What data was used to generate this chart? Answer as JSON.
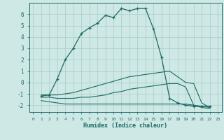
{
  "xlabel": "Humidex (Indice chaleur)",
  "background_color": "#cde8e5",
  "grid_color": "#aed0cc",
  "line_color": "#1a6b65",
  "xlim": [
    -0.5,
    23.5
  ],
  "ylim": [
    -2.6,
    7.0
  ],
  "xticks": [
    0,
    1,
    2,
    3,
    4,
    5,
    6,
    7,
    8,
    9,
    10,
    11,
    12,
    13,
    14,
    15,
    16,
    17,
    18,
    19,
    20,
    21,
    22,
    23
  ],
  "yticks": [
    -2,
    -1,
    0,
    1,
    2,
    3,
    4,
    5,
    6
  ],
  "series": [
    {
      "x": [
        1,
        2,
        3,
        4,
        5,
        6,
        7,
        8,
        9,
        10,
        11,
        12,
        13,
        14,
        15,
        16,
        17,
        18,
        19,
        20,
        21,
        22
      ],
      "y": [
        -1.2,
        -1.1,
        0.3,
        2.0,
        3.0,
        4.3,
        4.8,
        5.2,
        5.9,
        5.7,
        6.5,
        6.3,
        6.5,
        6.5,
        4.7,
        2.2,
        -1.4,
        -1.8,
        -2.0,
        -2.1,
        -2.1,
        -2.1
      ],
      "marker": "+"
    },
    {
      "x": [
        1,
        2,
        3,
        4,
        5,
        6,
        7,
        8,
        9,
        10,
        11,
        12,
        13,
        14,
        15,
        16,
        17,
        19,
        20,
        21,
        22
      ],
      "y": [
        -1.1,
        -1.1,
        -1.1,
        -1.0,
        -0.9,
        -0.7,
        -0.5,
        -0.3,
        -0.1,
        0.1,
        0.3,
        0.5,
        0.6,
        0.7,
        0.8,
        0.9,
        1.0,
        -0.0,
        -0.1,
        -1.8,
        -2.2
      ],
      "marker": null
    },
    {
      "x": [
        1,
        2,
        3,
        4,
        5,
        6,
        7,
        8,
        9,
        10,
        11,
        12,
        13,
        14,
        15,
        16,
        17,
        18,
        19,
        20,
        21,
        22
      ],
      "y": [
        -1.3,
        -1.3,
        -1.4,
        -1.4,
        -1.4,
        -1.3,
        -1.3,
        -1.2,
        -1.1,
        -0.9,
        -0.8,
        -0.6,
        -0.5,
        -0.4,
        -0.3,
        -0.2,
        -0.1,
        -0.1,
        -0.4,
        -2.0,
        -2.2,
        -2.3
      ],
      "marker": null
    },
    {
      "x": [
        1,
        2,
        3,
        4,
        5,
        6,
        7,
        8,
        9,
        10,
        11,
        12,
        13,
        14,
        15,
        16,
        17,
        18,
        19,
        20,
        21,
        22
      ],
      "y": [
        -1.6,
        -1.7,
        -1.8,
        -1.9,
        -1.9,
        -1.9,
        -1.9,
        -1.9,
        -1.9,
        -1.9,
        -1.9,
        -1.9,
        -1.9,
        -1.9,
        -1.9,
        -1.9,
        -1.9,
        -1.9,
        -1.9,
        -2.0,
        -2.1,
        -2.2
      ],
      "marker": null
    }
  ]
}
